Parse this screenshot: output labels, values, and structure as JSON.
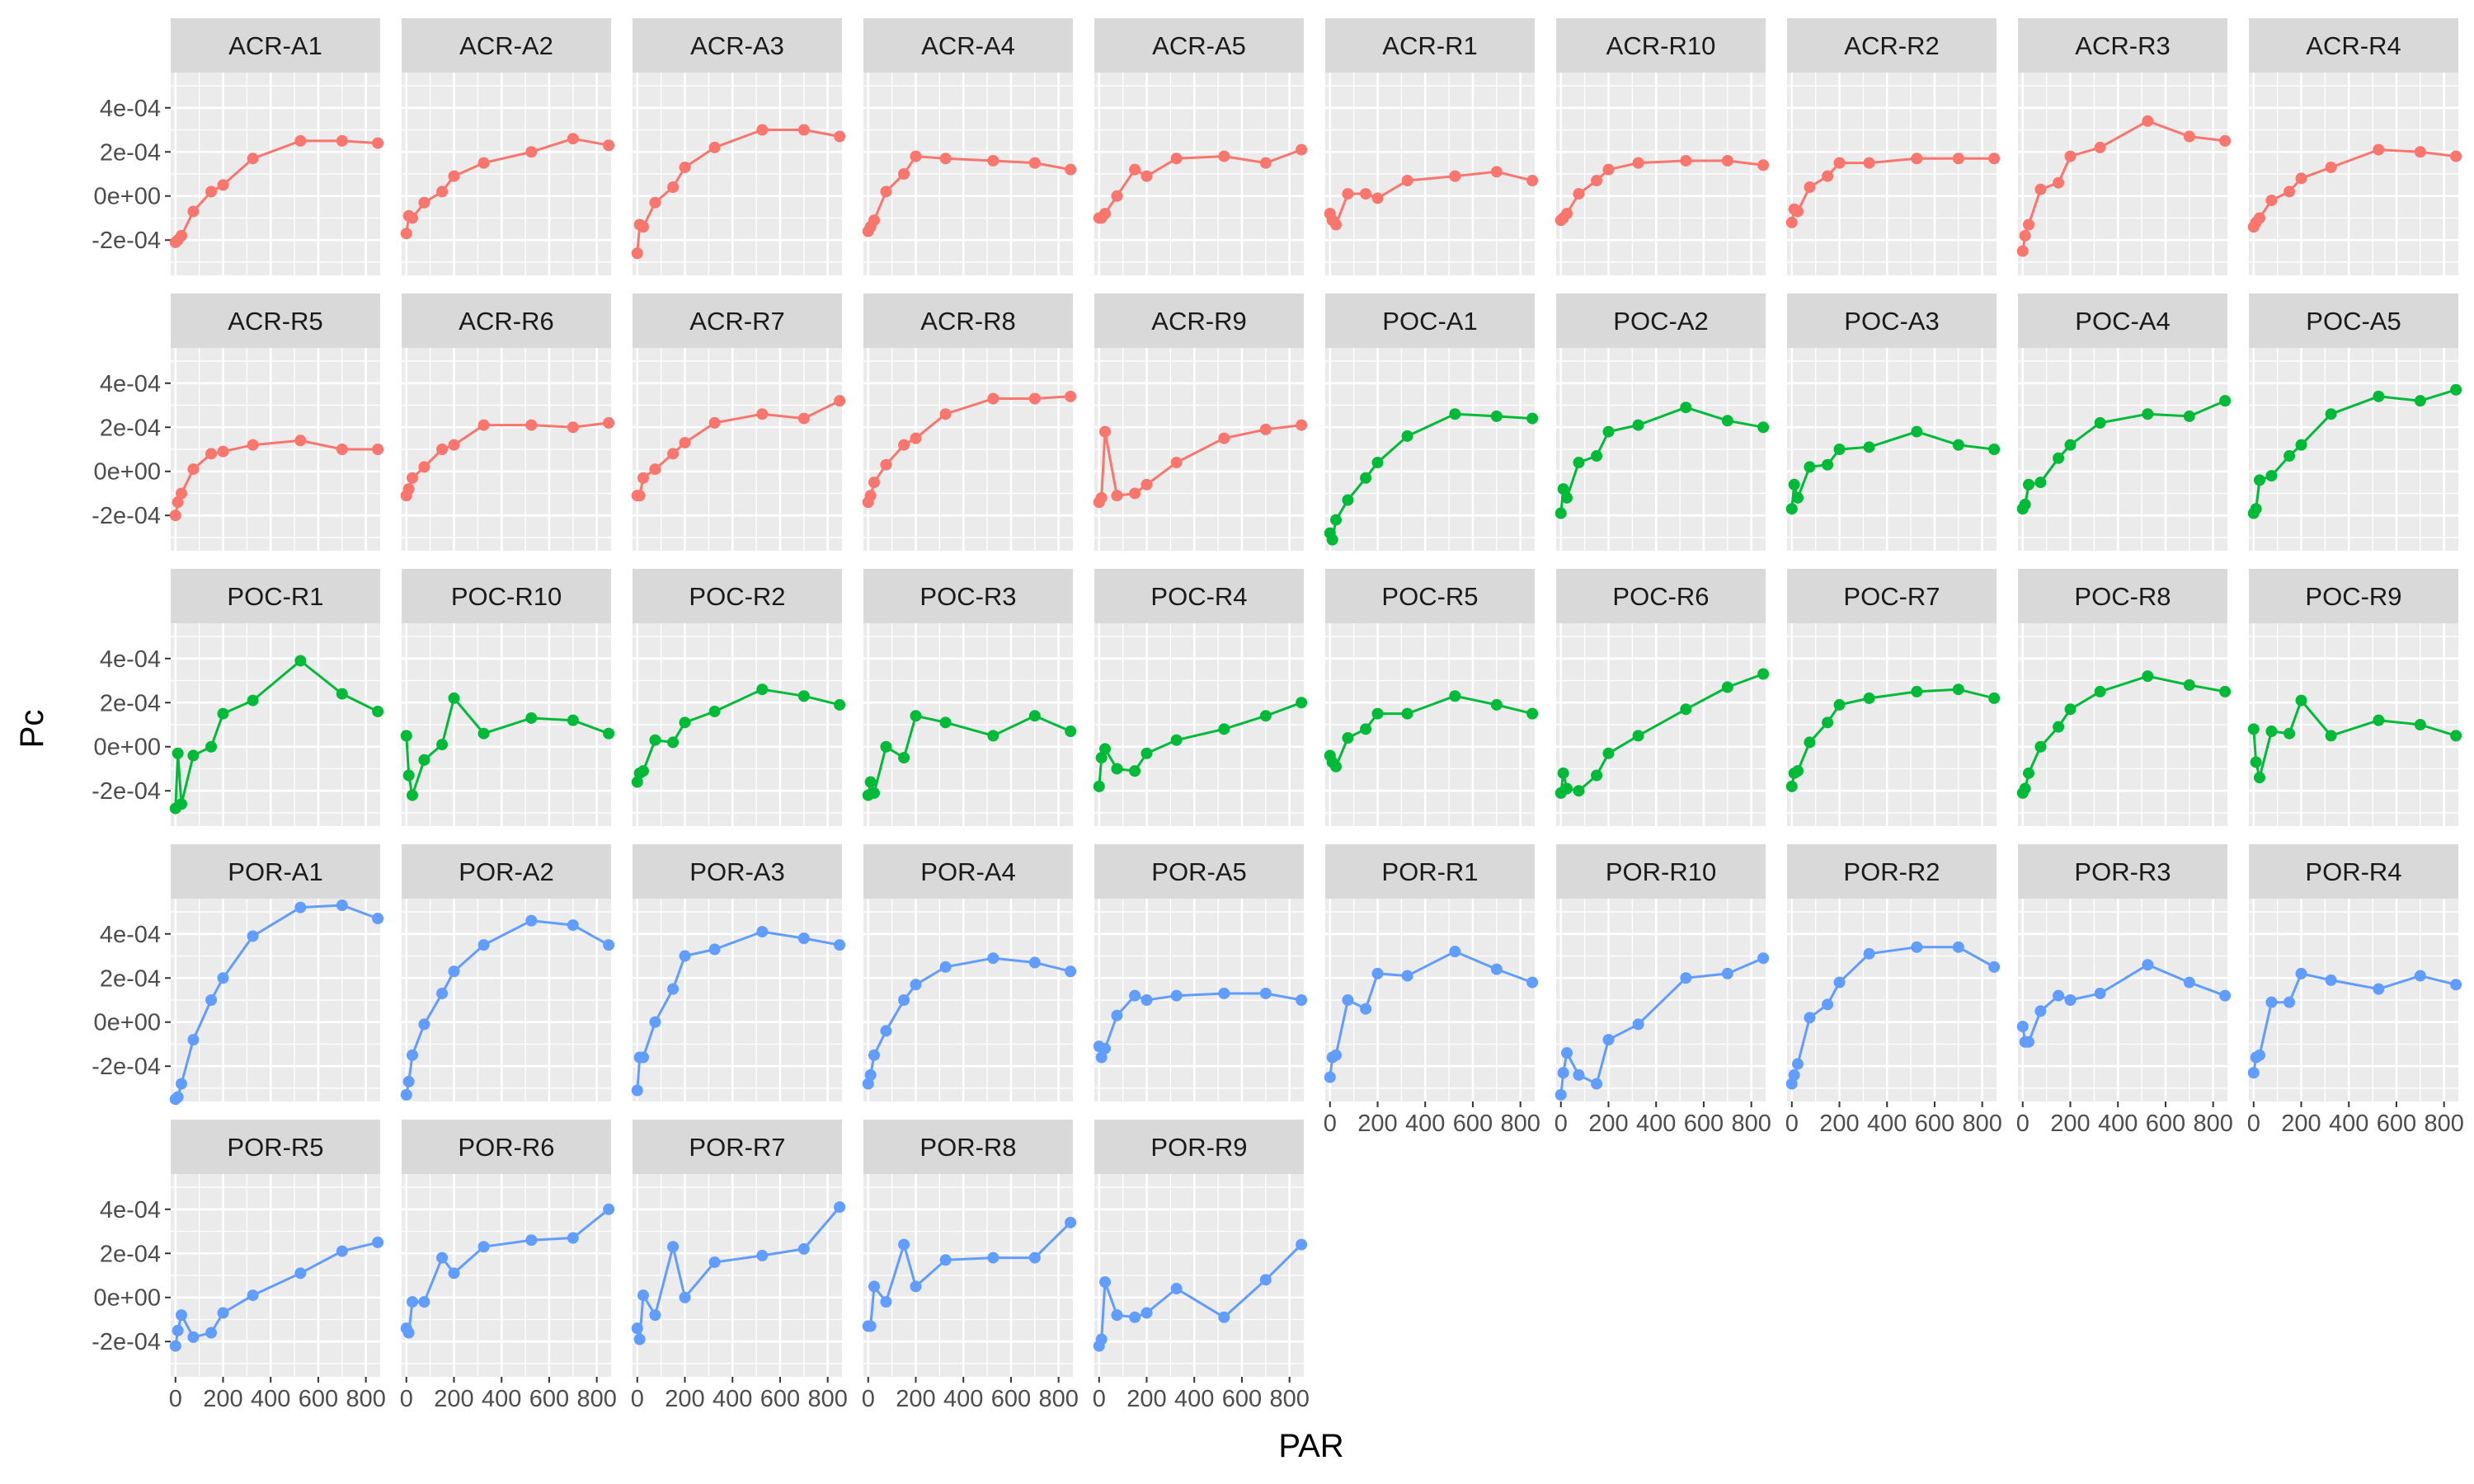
{
  "chart_data": {
    "type": "line",
    "facet_layout": "wrap",
    "ncol": 10,
    "xlabel": "PAR",
    "ylabel": "Pc",
    "xlim": [
      -20,
      860
    ],
    "ylim": [
      -0.00036,
      0.00056
    ],
    "x_ticks": [
      0,
      200,
      400,
      600,
      800
    ],
    "x_tick_labels": [
      "0",
      "200",
      "400",
      "600",
      "800"
    ],
    "y_ticks": [
      -0.0002,
      0,
      0.0002,
      0.0004
    ],
    "y_tick_labels": [
      "-2e-04",
      "0e+00",
      "2e-04",
      "4e-04"
    ],
    "x": [
      0,
      10,
      25,
      75,
      150,
      200,
      325,
      525,
      700,
      850
    ],
    "grid": true,
    "legend": "none",
    "group_colors": {
      "ACR": "#F8766D",
      "POC": "#00BA38",
      "POR": "#619CFF"
    },
    "panels": [
      {
        "name": "ACR-A1",
        "group": "ACR",
        "y": [
          -0.00021,
          -0.0002,
          -0.00018,
          -7e-05,
          2e-05,
          5e-05,
          0.00017,
          0.00025,
          0.00025,
          0.00024
        ]
      },
      {
        "name": "ACR-A2",
        "group": "ACR",
        "y": [
          -0.00017,
          -9e-05,
          -0.0001,
          -3e-05,
          2e-05,
          9e-05,
          0.00015,
          0.0002,
          0.00026,
          0.00023
        ]
      },
      {
        "name": "ACR-A3",
        "group": "ACR",
        "y": [
          -0.00026,
          -0.00013,
          -0.00014,
          -3e-05,
          4e-05,
          0.00013,
          0.00022,
          0.0003,
          0.0003,
          0.00027
        ]
      },
      {
        "name": "ACR-A4",
        "group": "ACR",
        "y": [
          -0.00016,
          -0.00014,
          -0.00011,
          2e-05,
          0.0001,
          0.00018,
          0.00017,
          0.00016,
          0.00015,
          0.00012
        ]
      },
      {
        "name": "ACR-A5",
        "group": "ACR",
        "y": [
          -0.0001,
          -0.0001,
          -8e-05,
          0,
          0.00012,
          9e-05,
          0.00017,
          0.00018,
          0.00015,
          0.00021
        ]
      },
      {
        "name": "ACR-R1",
        "group": "ACR",
        "y": [
          -8e-05,
          -0.00011,
          -0.00013,
          1e-05,
          1e-05,
          -1e-05,
          7e-05,
          9e-05,
          0.00011,
          7e-05
        ]
      },
      {
        "name": "ACR-R10",
        "group": "ACR",
        "y": [
          -0.00011,
          -0.0001,
          -8e-05,
          1e-05,
          7e-05,
          0.00012,
          0.00015,
          0.00016,
          0.00016,
          0.00014
        ]
      },
      {
        "name": "ACR-R2",
        "group": "ACR",
        "y": [
          -0.00012,
          -6e-05,
          -7e-05,
          4e-05,
          9e-05,
          0.00015,
          0.00015,
          0.00017,
          0.00017,
          0.00017
        ]
      },
      {
        "name": "ACR-R3",
        "group": "ACR",
        "y": [
          -0.00025,
          -0.00018,
          -0.00013,
          3e-05,
          6e-05,
          0.00018,
          0.00022,
          0.00034,
          0.00027,
          0.00025
        ]
      },
      {
        "name": "ACR-R4",
        "group": "ACR",
        "y": [
          -0.00014,
          -0.00012,
          -0.0001,
          -2e-05,
          2e-05,
          8e-05,
          0.00013,
          0.00021,
          0.0002,
          0.00018
        ]
      },
      {
        "name": "ACR-R5",
        "group": "ACR",
        "y": [
          -0.0002,
          -0.00014,
          -0.0001,
          1e-05,
          8e-05,
          9e-05,
          0.00012,
          0.00014,
          0.0001,
          0.0001
        ]
      },
      {
        "name": "ACR-R6",
        "group": "ACR",
        "y": [
          -0.00011,
          -8e-05,
          -3e-05,
          2e-05,
          0.0001,
          0.00012,
          0.00021,
          0.00021,
          0.0002,
          0.00022
        ]
      },
      {
        "name": "ACR-R7",
        "group": "ACR",
        "y": [
          -0.00011,
          -0.00011,
          -3e-05,
          1e-05,
          8e-05,
          0.00013,
          0.00022,
          0.00026,
          0.00024,
          0.00032
        ]
      },
      {
        "name": "ACR-R8",
        "group": "ACR",
        "y": [
          -0.00014,
          -0.00011,
          -5e-05,
          3e-05,
          0.00012,
          0.00015,
          0.00026,
          0.00033,
          0.00033,
          0.00034
        ]
      },
      {
        "name": "ACR-R9",
        "group": "ACR",
        "y": [
          -0.00014,
          -0.00012,
          0.00018,
          -0.00011,
          -0.0001,
          -6e-05,
          4e-05,
          0.00015,
          0.00019,
          0.00021
        ]
      },
      {
        "name": "POC-A1",
        "group": "POC",
        "y": [
          -0.00028,
          -0.00031,
          -0.00022,
          -0.00013,
          -3e-05,
          4e-05,
          0.00016,
          0.00026,
          0.00025,
          0.00024
        ]
      },
      {
        "name": "POC-A2",
        "group": "POC",
        "y": [
          -0.00019,
          -8e-05,
          -0.00012,
          4e-05,
          7e-05,
          0.00018,
          0.00021,
          0.00029,
          0.00023,
          0.0002
        ]
      },
      {
        "name": "POC-A3",
        "group": "POC",
        "y": [
          -0.00017,
          -6e-05,
          -0.00012,
          2e-05,
          3e-05,
          0.0001,
          0.00011,
          0.00018,
          0.00012,
          0.0001
        ]
      },
      {
        "name": "POC-A4",
        "group": "POC",
        "y": [
          -0.00017,
          -0.00015,
          -6e-05,
          -5e-05,
          6e-05,
          0.00012,
          0.00022,
          0.00026,
          0.00025,
          0.00032
        ]
      },
      {
        "name": "POC-A5",
        "group": "POC",
        "y": [
          -0.00019,
          -0.00017,
          -4e-05,
          -2e-05,
          7e-05,
          0.00012,
          0.00026,
          0.00034,
          0.00032,
          0.00037
        ]
      },
      {
        "name": "POC-R1",
        "group": "POC",
        "y": [
          -0.00028,
          -3e-05,
          -0.00026,
          -4e-05,
          0,
          0.00015,
          0.00021,
          0.00039,
          0.00024,
          0.00016
        ]
      },
      {
        "name": "POC-R10",
        "group": "POC",
        "y": [
          5e-05,
          -0.00013,
          -0.00022,
          -6e-05,
          1e-05,
          0.00022,
          6e-05,
          0.00013,
          0.00012,
          6e-05
        ]
      },
      {
        "name": "POC-R2",
        "group": "POC",
        "y": [
          -0.00016,
          -0.00012,
          -0.00011,
          3e-05,
          2e-05,
          0.00011,
          0.00016,
          0.00026,
          0.00023,
          0.00019
        ]
      },
      {
        "name": "POC-R3",
        "group": "POC",
        "y": [
          -0.00022,
          -0.00016,
          -0.00021,
          0,
          -5e-05,
          0.00014,
          0.00011,
          5e-05,
          0.00014,
          7e-05
        ]
      },
      {
        "name": "POC-R4",
        "group": "POC",
        "y": [
          -0.00018,
          -5e-05,
          -1e-05,
          -0.0001,
          -0.00011,
          -3e-05,
          3e-05,
          8e-05,
          0.00014,
          0.0002
        ]
      },
      {
        "name": "POC-R5",
        "group": "POC",
        "y": [
          -4e-05,
          -7e-05,
          -9e-05,
          4e-05,
          8e-05,
          0.00015,
          0.00015,
          0.00023,
          0.00019,
          0.00015
        ]
      },
      {
        "name": "POC-R6",
        "group": "POC",
        "y": [
          -0.00021,
          -0.00012,
          -0.00019,
          -0.0002,
          -0.00013,
          -3e-05,
          5e-05,
          0.00017,
          0.00027,
          0.00033
        ]
      },
      {
        "name": "POC-R7",
        "group": "POC",
        "y": [
          -0.00018,
          -0.00012,
          -0.00011,
          2e-05,
          0.00011,
          0.00019,
          0.00022,
          0.00025,
          0.00026,
          0.00022
        ]
      },
      {
        "name": "POC-R8",
        "group": "POC",
        "y": [
          -0.00021,
          -0.00019,
          -0.00012,
          0,
          9e-05,
          0.00017,
          0.00025,
          0.00032,
          0.00028,
          0.00025
        ]
      },
      {
        "name": "POC-R9",
        "group": "POC",
        "y": [
          8e-05,
          -7e-05,
          -0.00014,
          7e-05,
          6e-05,
          0.00021,
          5e-05,
          0.00012,
          0.0001,
          5e-05
        ]
      },
      {
        "name": "POR-A1",
        "group": "POR",
        "y": [
          -0.00035,
          -0.00034,
          -0.00028,
          -8e-05,
          0.0001,
          0.0002,
          0.00039,
          0.00052,
          0.00053,
          0.00047
        ]
      },
      {
        "name": "POR-A2",
        "group": "POR",
        "y": [
          -0.00033,
          -0.00027,
          -0.00015,
          -1e-05,
          0.00013,
          0.00023,
          0.00035,
          0.00046,
          0.00044,
          0.00035
        ]
      },
      {
        "name": "POR-A3",
        "group": "POR",
        "y": [
          -0.00031,
          -0.00016,
          -0.00016,
          0,
          0.00015,
          0.0003,
          0.00033,
          0.00041,
          0.00038,
          0.00035
        ]
      },
      {
        "name": "POR-A4",
        "group": "POR",
        "y": [
          -0.00028,
          -0.00024,
          -0.00015,
          -4e-05,
          0.0001,
          0.00017,
          0.00025,
          0.00029,
          0.00027,
          0.00023
        ]
      },
      {
        "name": "POR-A5",
        "group": "POR",
        "y": [
          -0.00011,
          -0.00016,
          -0.00012,
          3e-05,
          0.00012,
          0.0001,
          0.00012,
          0.00013,
          0.00013,
          0.0001
        ]
      },
      {
        "name": "POR-R1",
        "group": "POR",
        "y": [
          -0.00025,
          -0.00016,
          -0.00015,
          0.0001,
          6e-05,
          0.00022,
          0.00021,
          0.00032,
          0.00024,
          0.00018
        ]
      },
      {
        "name": "POR-R10",
        "group": "POR",
        "y": [
          -0.00033,
          -0.00023,
          -0.00014,
          -0.00024,
          -0.00028,
          -8e-05,
          -1e-05,
          0.0002,
          0.00022,
          0.00029
        ]
      },
      {
        "name": "POR-R2",
        "group": "POR",
        "y": [
          -0.00028,
          -0.00024,
          -0.00019,
          2e-05,
          8e-05,
          0.00018,
          0.00031,
          0.00034,
          0.00034,
          0.00025
        ]
      },
      {
        "name": "POR-R3",
        "group": "POR",
        "y": [
          -2e-05,
          -9e-05,
          -9e-05,
          5e-05,
          0.00012,
          0.0001,
          0.00013,
          0.00026,
          0.00018,
          0.00012
        ]
      },
      {
        "name": "POR-R4",
        "group": "POR",
        "y": [
          -0.00023,
          -0.00016,
          -0.00015,
          9e-05,
          9e-05,
          0.00022,
          0.00019,
          0.00015,
          0.00021,
          0.00017
        ]
      },
      {
        "name": "POR-R5",
        "group": "POR",
        "y": [
          -0.00022,
          -0.00015,
          -8e-05,
          -0.00018,
          -0.00016,
          -7e-05,
          1e-05,
          0.00011,
          0.00021,
          0.00025
        ]
      },
      {
        "name": "POR-R6",
        "group": "POR",
        "y": [
          -0.00014,
          -0.00016,
          -2e-05,
          -2e-05,
          0.00018,
          0.00011,
          0.00023,
          0.00026,
          0.00027,
          0.0004
        ]
      },
      {
        "name": "POR-R7",
        "group": "POR",
        "y": [
          -0.00014,
          -0.00019,
          1e-05,
          -8e-05,
          0.00023,
          0,
          0.00016,
          0.00019,
          0.00022,
          0.00041
        ]
      },
      {
        "name": "POR-R8",
        "group": "POR",
        "y": [
          -0.00013,
          -0.00013,
          5e-05,
          -2e-05,
          0.00024,
          5e-05,
          0.00017,
          0.00018,
          0.00018,
          0.00034
        ]
      },
      {
        "name": "POR-R9",
        "group": "POR",
        "y": [
          -0.00022,
          -0.00019,
          7e-05,
          -8e-05,
          -9e-05,
          -7e-05,
          4e-05,
          -9e-05,
          8e-05,
          0.00024
        ]
      }
    ]
  }
}
